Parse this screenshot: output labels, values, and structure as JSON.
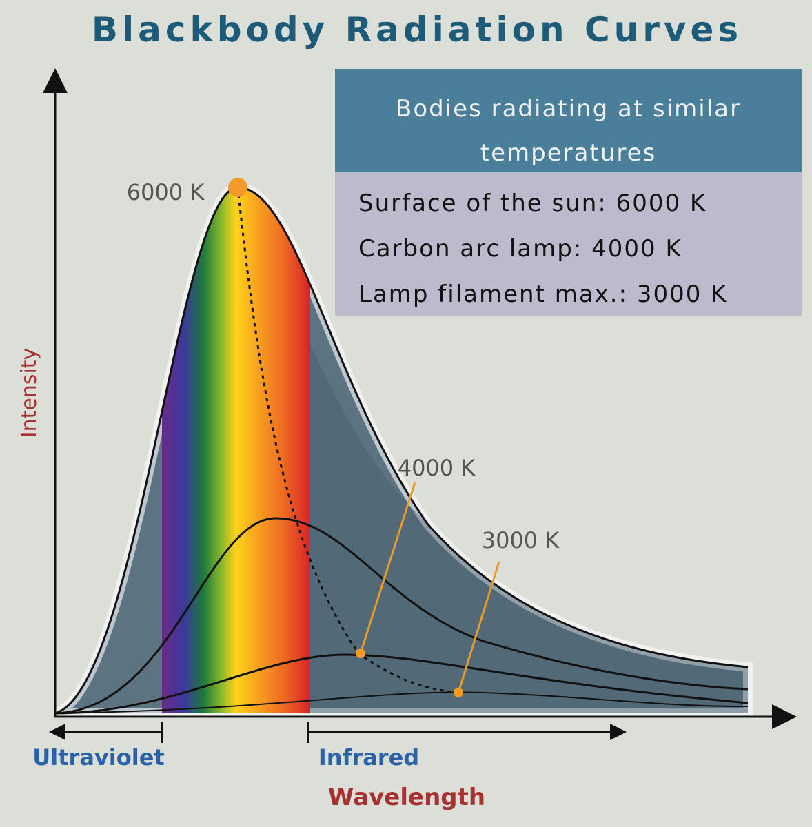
{
  "title": "Blackbody Radiation Curves",
  "axes": {
    "y_label": "Intensity",
    "x_label": "Wavelength"
  },
  "regions": {
    "ultraviolet": "Ultraviolet",
    "infrared": "Infrared"
  },
  "curves": [
    {
      "label": "6000 K"
    },
    {
      "label": "4000 K"
    },
    {
      "label": "3000 K"
    }
  ],
  "legend": {
    "header": "Bodies radiating at similar temperatures",
    "rows": [
      "Surface of the sun: 6000 K",
      "Carbon arc lamp: 4000 K",
      "Lamp filament max.: 3000 K"
    ]
  }
}
